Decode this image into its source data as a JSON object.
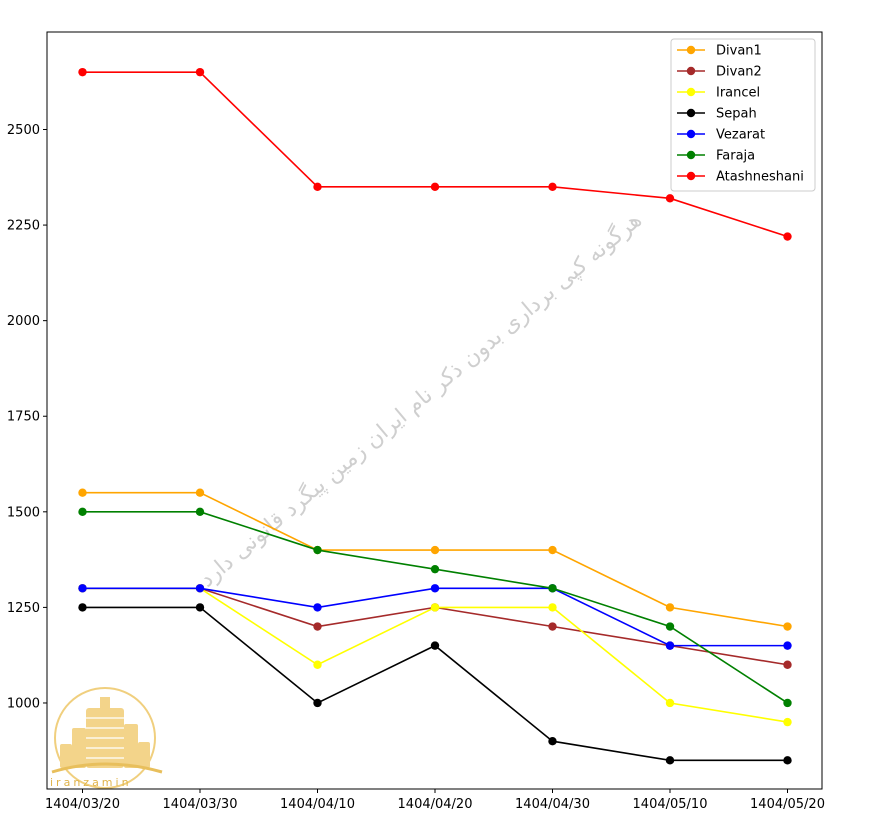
{
  "chart_data": {
    "type": "line",
    "title": "",
    "xlabel": "",
    "ylabel": "",
    "categories": [
      "1404/03/20",
      "1404/03/30",
      "1404/04/10",
      "1404/04/20",
      "1404/04/30",
      "1404/05/10",
      "1404/05/20"
    ],
    "yticks": [
      1000,
      1250,
      1500,
      1750,
      2000,
      2250,
      2500
    ],
    "ylim": [
      775,
      2755
    ],
    "grid": false,
    "legend_position": "top-right",
    "series": [
      {
        "name": "Divan1",
        "color": "#ffa500",
        "values": [
          1550,
          1550,
          1400,
          1400,
          1400,
          1250,
          1200
        ]
      },
      {
        "name": "Divan2",
        "color": "#a52a2a",
        "values": [
          1300,
          1300,
          1200,
          1250,
          1200,
          1150,
          1100
        ]
      },
      {
        "name": "Irancel",
        "color": "#ffff00",
        "values": [
          1300,
          1300,
          1100,
          1250,
          1250,
          1000,
          950
        ]
      },
      {
        "name": "Sepah",
        "color": "#000000",
        "values": [
          1250,
          1250,
          1000,
          1150,
          900,
          850,
          850
        ]
      },
      {
        "name": "Vezarat",
        "color": "#0000ff",
        "values": [
          1300,
          1300,
          1250,
          1300,
          1300,
          1150,
          1150
        ]
      },
      {
        "name": "Faraja",
        "color": "#008000",
        "values": [
          1500,
          1500,
          1400,
          1350,
          1300,
          1200,
          1000
        ]
      },
      {
        "name": "Atashneshani",
        "color": "#ff0000",
        "values": [
          2650,
          2650,
          2350,
          2350,
          2350,
          2320,
          2220
        ]
      }
    ]
  },
  "watermark": {
    "text": "هرگونه کپی برداری بدون ذکر نام ایران زمین پیگرد قانونی دارد"
  },
  "logo": {
    "text": "iranzamin"
  }
}
